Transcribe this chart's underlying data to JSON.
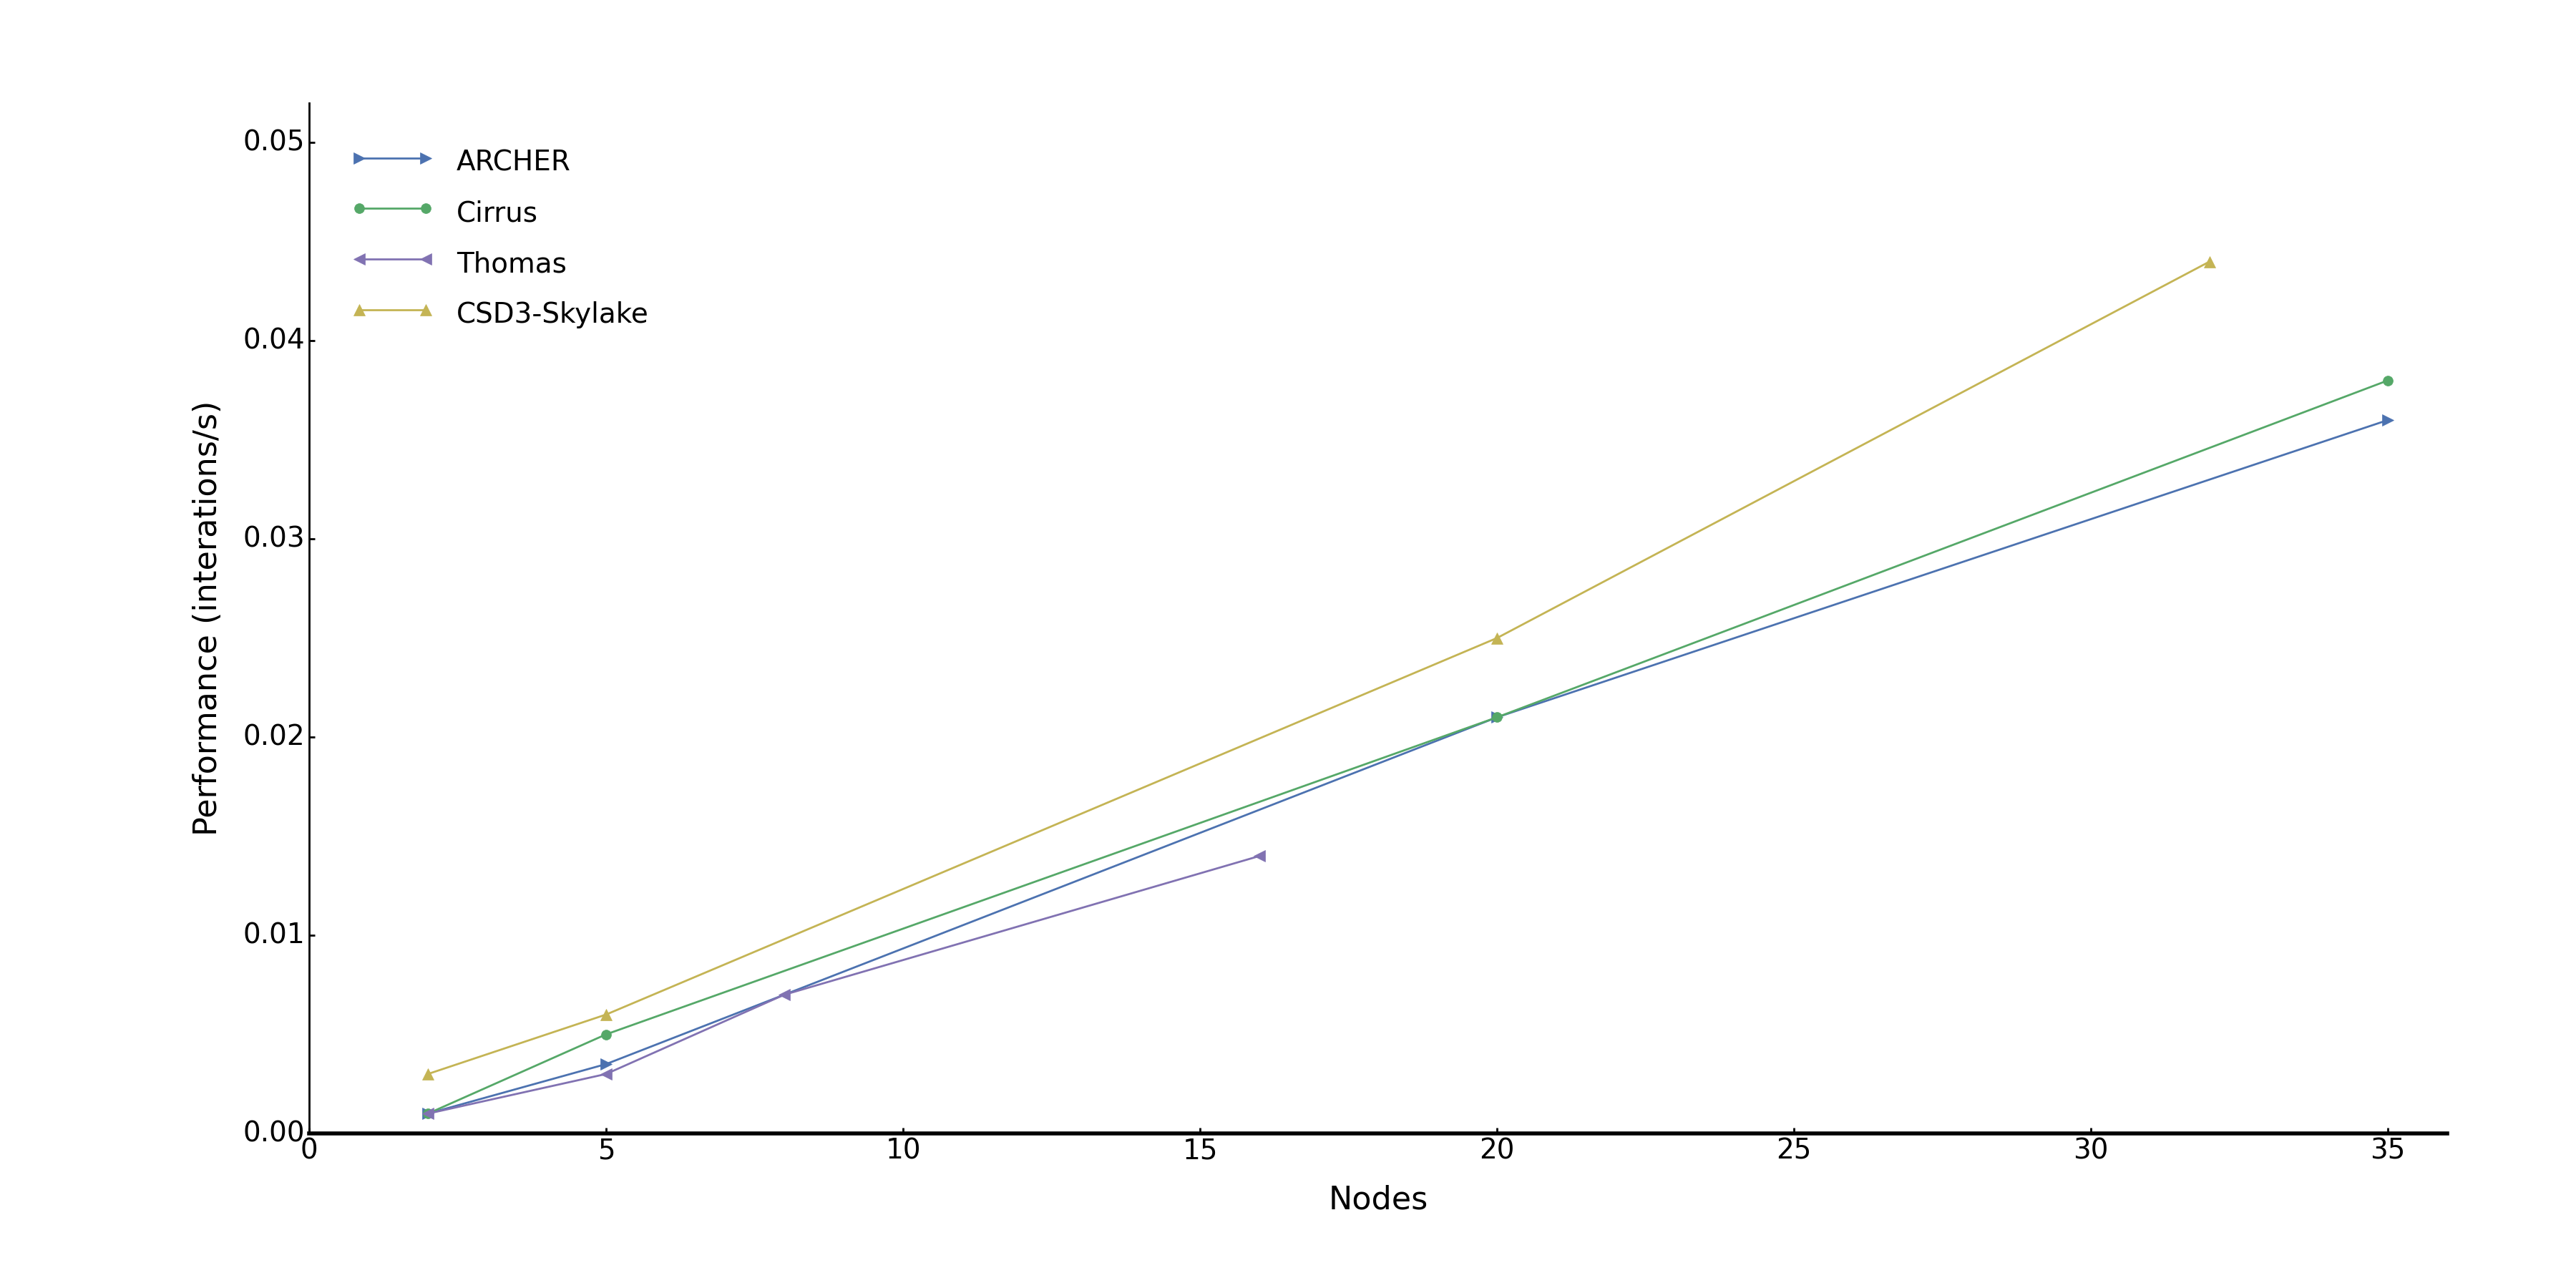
{
  "series": [
    {
      "label": "ARCHER",
      "x": [
        2,
        5,
        20,
        35
      ],
      "y": [
        0.001,
        0.0035,
        0.021,
        0.036
      ],
      "color": "#4c72b0",
      "marker": ">",
      "markersize": 12,
      "linewidth": 2.0
    },
    {
      "label": "Cirrus",
      "x": [
        2,
        5,
        20,
        35
      ],
      "y": [
        0.001,
        0.005,
        0.021,
        0.038
      ],
      "color": "#55a868",
      "marker": "o",
      "markersize": 10,
      "linewidth": 2.0
    },
    {
      "label": "Thomas",
      "x": [
        2,
        5,
        8,
        16
      ],
      "y": [
        0.001,
        0.003,
        0.007,
        0.014
      ],
      "color": "#8172b2",
      "marker": "<",
      "markersize": 12,
      "linewidth": 2.0
    },
    {
      "label": "CSD3-Skylake",
      "x": [
        2,
        5,
        20,
        32
      ],
      "y": [
        0.003,
        0.006,
        0.025,
        0.044
      ],
      "color": "#c4b454",
      "marker": "^",
      "markersize": 12,
      "linewidth": 2.0
    }
  ],
  "xlabel": "Nodes",
  "ylabel": "Performance (interations/s)",
  "xlim": [
    0,
    36
  ],
  "ylim": [
    0,
    0.052
  ],
  "xticks": [
    0,
    5,
    10,
    15,
    20,
    25,
    30,
    35
  ],
  "yticks": [
    0.0,
    0.01,
    0.02,
    0.03,
    0.04,
    0.05
  ],
  "legend_loc": "upper left",
  "legend_fontsize": 28,
  "axis_label_fontsize": 32,
  "tick_fontsize": 28,
  "background_color": "#ffffff"
}
